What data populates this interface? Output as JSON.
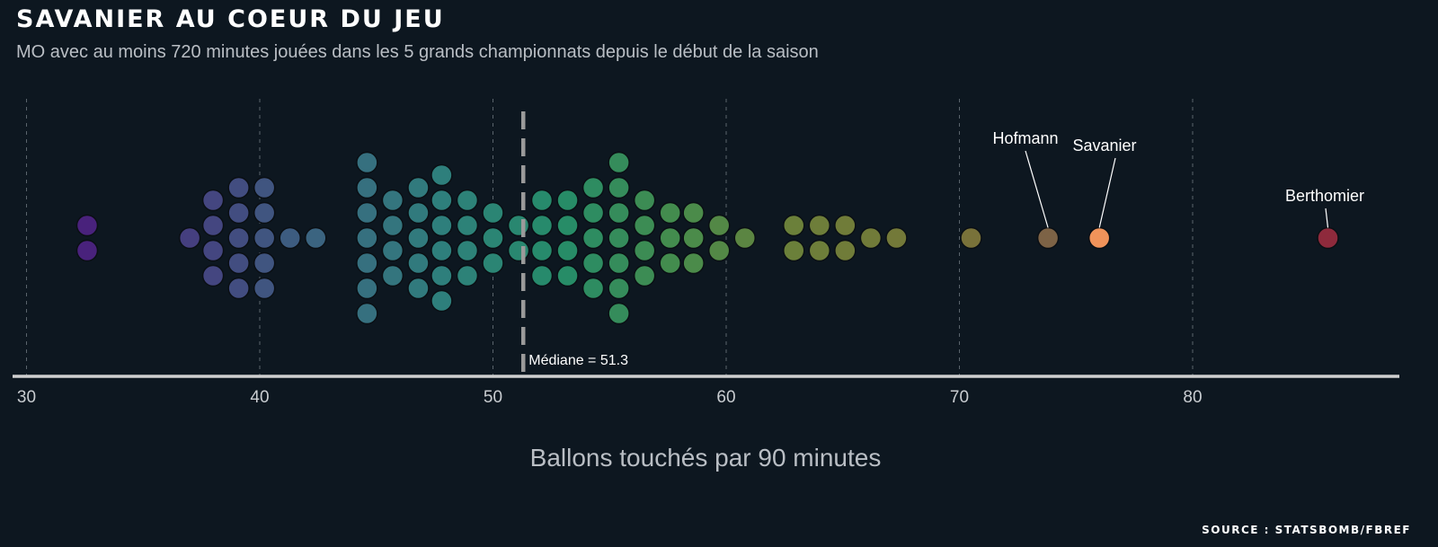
{
  "header": {
    "title": "SAVANIER AU COEUR DU JEU",
    "subtitle": "MO avec au moins 720 minutes jouées dans les 5 grands championnats depuis le début de la saison"
  },
  "footer": {
    "source": "SOURCE : STATSBOMB/FBREF"
  },
  "colors": {
    "background": "#0d1720",
    "axis": "#cfcfcf",
    "grid": "#5a646c",
    "median": "#9a9a9a",
    "savanier": "#f0935a",
    "hofmann": "#7d6346",
    "berthomier": "#8e2a3c"
  },
  "chart_data": {
    "type": "scatter",
    "style": "beeswarm",
    "xlabel": "Ballons touchés par 90 minutes",
    "xlim": [
      29.5,
      88.5
    ],
    "x_ticks": [
      30,
      40,
      50,
      60,
      70,
      80
    ],
    "x_tick_labels": [
      "30",
      "40",
      "50",
      "60",
      "70",
      "80"
    ],
    "grid": "vertical dashed",
    "median": {
      "value": 51.3,
      "label": "Médiane = 51.3"
    },
    "columns": [
      {
        "x": 32.6,
        "count": 2
      },
      {
        "x": 37.0,
        "count": 1
      },
      {
        "x": 38.0,
        "count": 4
      },
      {
        "x": 39.1,
        "count": 5
      },
      {
        "x": 40.2,
        "count": 5
      },
      {
        "x": 41.3,
        "count": 1
      },
      {
        "x": 42.4,
        "count": 1
      },
      {
        "x": 44.6,
        "count": 7
      },
      {
        "x": 45.7,
        "count": 4
      },
      {
        "x": 46.8,
        "count": 5
      },
      {
        "x": 47.8,
        "count": 6
      },
      {
        "x": 48.9,
        "count": 4
      },
      {
        "x": 50.0,
        "count": 3
      },
      {
        "x": 51.1,
        "count": 2
      },
      {
        "x": 52.1,
        "count": 4
      },
      {
        "x": 53.2,
        "count": 4
      },
      {
        "x": 54.3,
        "count": 5
      },
      {
        "x": 55.4,
        "count": 7
      },
      {
        "x": 56.5,
        "count": 4
      },
      {
        "x": 57.6,
        "count": 3
      },
      {
        "x": 58.6,
        "count": 3
      },
      {
        "x": 59.7,
        "count": 2
      },
      {
        "x": 60.8,
        "count": 1
      },
      {
        "x": 62.9,
        "count": 2
      },
      {
        "x": 64.0,
        "count": 2
      },
      {
        "x": 65.1,
        "count": 2
      },
      {
        "x": 66.2,
        "count": 1
      },
      {
        "x": 67.3,
        "count": 1
      },
      {
        "x": 70.5,
        "count": 1
      },
      {
        "x": 73.8,
        "count": 1
      },
      {
        "x": 76.0,
        "count": 1
      },
      {
        "x": 85.8,
        "count": 1
      }
    ],
    "highlighted": [
      {
        "name": "Hofmann",
        "x": 73.8
      },
      {
        "name": "Savanier",
        "x": 76.0
      },
      {
        "name": "Berthomier",
        "x": 85.8
      }
    ]
  }
}
